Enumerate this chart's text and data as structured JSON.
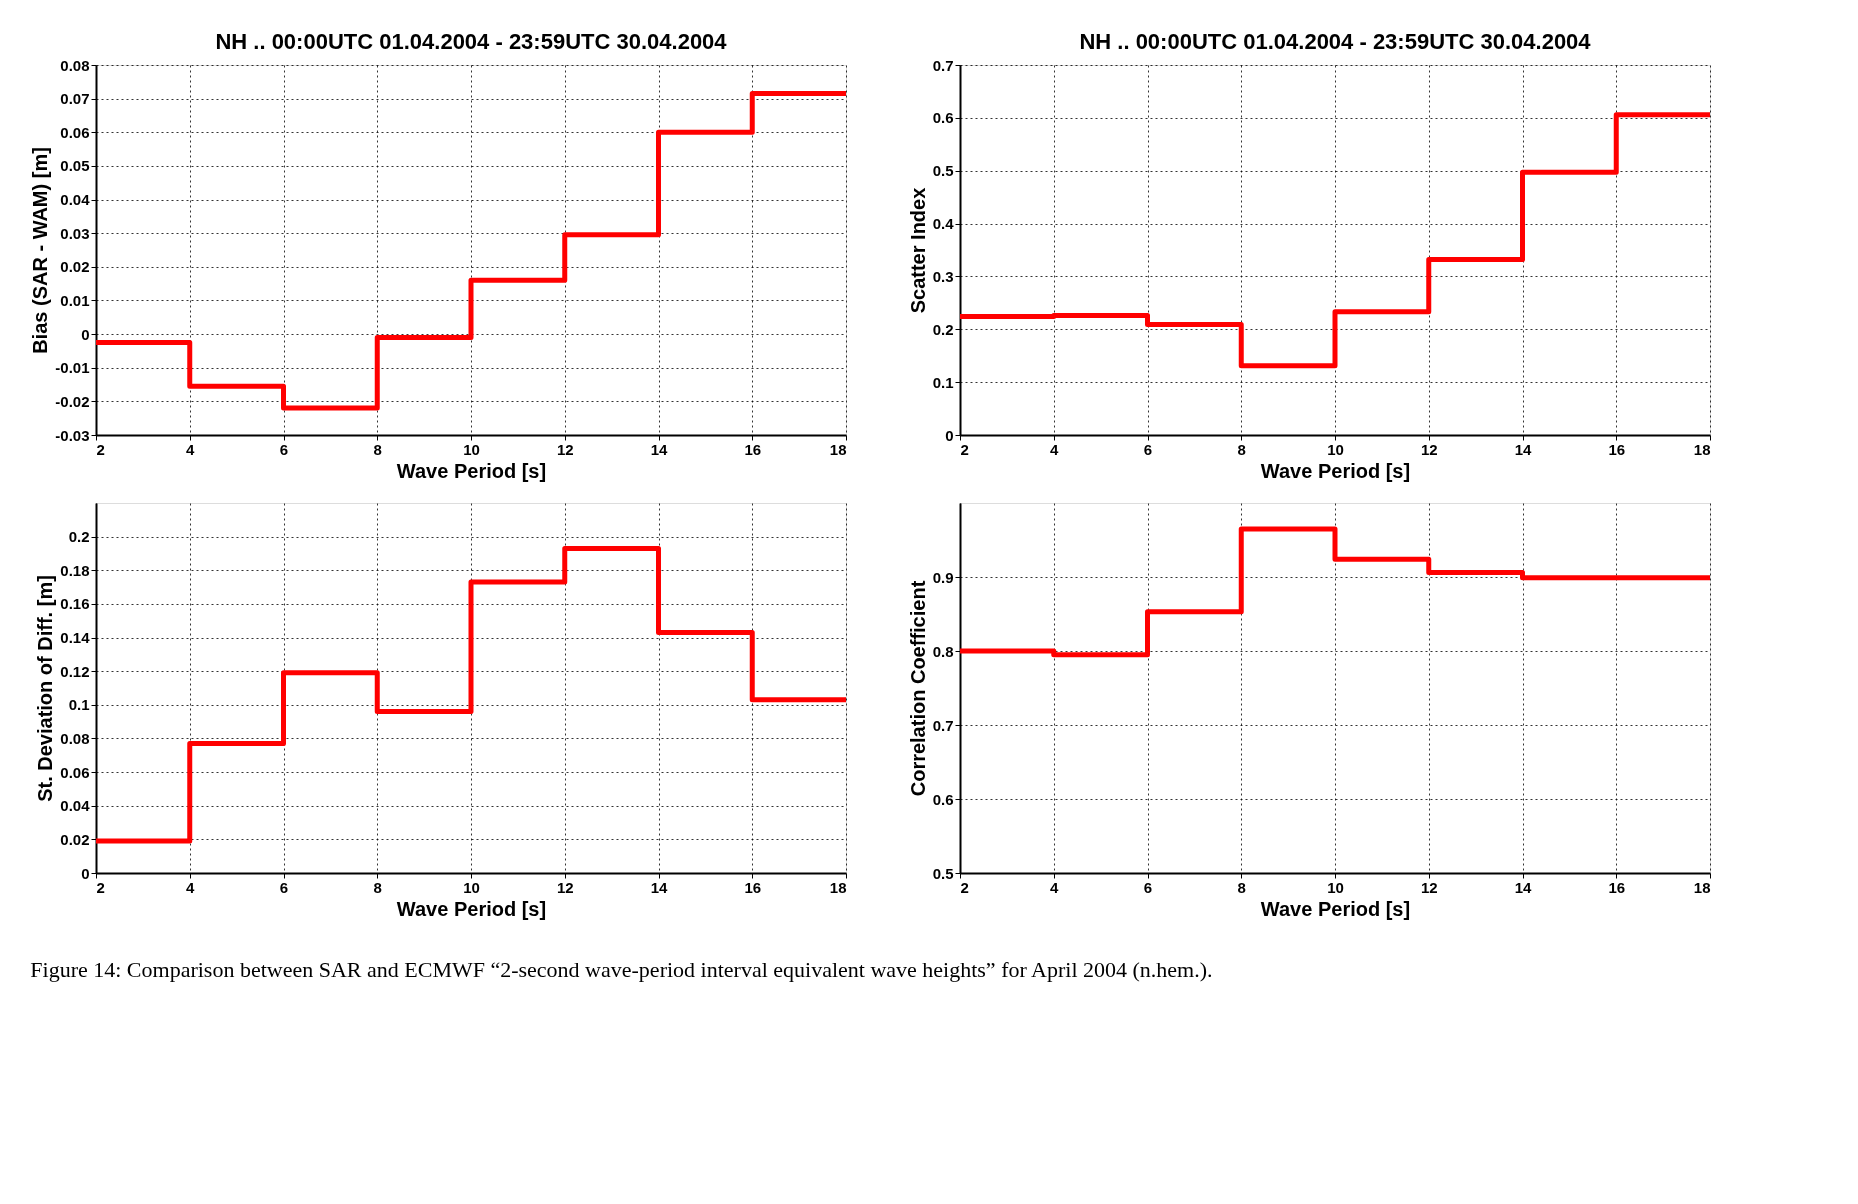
{
  "chart_data": [
    {
      "type": "step",
      "title": "NH .. 00:00UTC 01.04.2004 - 23:59UTC 30.04.2004",
      "xlabel": "Wave Period   [s]",
      "ylabel": "Bias (SAR - WAM)   [m]",
      "x": [
        2,
        4,
        6,
        8,
        10,
        12,
        14,
        16,
        18
      ],
      "xlim": [
        2,
        18
      ],
      "xticks": [
        2,
        4,
        6,
        8,
        10,
        12,
        14,
        16,
        18
      ],
      "ylim": [
        -0.03,
        0.08
      ],
      "yticks": [
        -0.03,
        -0.02,
        -0.01,
        0,
        0.01,
        0.02,
        0.03,
        0.04,
        0.05,
        0.06,
        0.07,
        0.08
      ],
      "grid": true,
      "series": [
        {
          "color": "#ff0000",
          "values": [
            -0.0025,
            -0.0155,
            -0.022,
            -0.001,
            0.016,
            0.0295,
            0.06,
            0.0715,
            0.0715
          ]
        }
      ]
    },
    {
      "type": "step",
      "title": "NH .. 00:00UTC 01.04.2004 - 23:59UTC 30.04.2004",
      "xlabel": "Wave Period   [s]",
      "ylabel": "Scatter Index",
      "x": [
        2,
        4,
        6,
        8,
        10,
        12,
        14,
        16,
        18
      ],
      "xlim": [
        2,
        18
      ],
      "xticks": [
        2,
        4,
        6,
        8,
        10,
        12,
        14,
        16,
        18
      ],
      "ylim": [
        0,
        0.7
      ],
      "yticks": [
        0,
        0.1,
        0.2,
        0.3,
        0.4,
        0.5,
        0.6,
        0.7
      ],
      "grid": true,
      "series": [
        {
          "color": "#ff0000",
          "values": [
            0.224,
            0.226,
            0.209,
            0.131,
            0.233,
            0.332,
            0.497,
            0.606,
            0.606
          ]
        }
      ]
    },
    {
      "type": "step",
      "xlabel": "Wave Period   [s]",
      "ylabel": "St. Deviation of Diff.  [m]",
      "x": [
        2,
        4,
        6,
        8,
        10,
        12,
        14,
        16,
        18
      ],
      "xlim": [
        2,
        18
      ],
      "xticks": [
        2,
        4,
        6,
        8,
        10,
        12,
        14,
        16,
        18
      ],
      "ylim": [
        0,
        0.22
      ],
      "yticks": [
        0,
        0.02,
        0.04,
        0.06,
        0.08,
        0.1,
        0.12,
        0.14,
        0.16,
        0.18,
        0.2
      ],
      "grid": true,
      "series": [
        {
          "color": "#ff0000",
          "values": [
            0.019,
            0.077,
            0.119,
            0.096,
            0.173,
            0.193,
            0.143,
            0.103,
            0.103
          ]
        }
      ]
    },
    {
      "type": "step",
      "xlabel": "Wave Period   [s]",
      "ylabel": "Correlation  Coefficient",
      "x": [
        2,
        4,
        6,
        8,
        10,
        12,
        14,
        16,
        18
      ],
      "xlim": [
        2,
        18
      ],
      "xticks": [
        2,
        4,
        6,
        8,
        10,
        12,
        14,
        16,
        18
      ],
      "ylim": [
        0.5,
        1.0
      ],
      "yticks": [
        0.5,
        0.6,
        0.7,
        0.8,
        0.9
      ],
      "grid": true,
      "series": [
        {
          "color": "#ff0000",
          "values": [
            0.8,
            0.795,
            0.853,
            0.965,
            0.924,
            0.906,
            0.899,
            0.899,
            0.899
          ]
        }
      ],
      "annotations": [
        "Figure 14: Comparison between SAR and ECMWF “2-second wave-period interval equivalent wave heights” for April 2004 (n.hem.)."
      ]
    }
  ]
}
